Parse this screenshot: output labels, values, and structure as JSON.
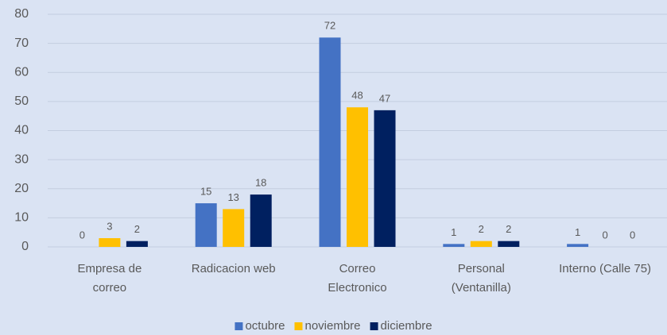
{
  "chart_data": {
    "type": "bar",
    "categories": [
      [
        "Empresa de",
        "correo"
      ],
      [
        "Radicacion web"
      ],
      [
        "Correo",
        "Electronico"
      ],
      [
        "Personal",
        "(Ventanilla)"
      ],
      [
        "Interno (Calle 75)"
      ]
    ],
    "series": [
      {
        "name": "octubre",
        "color": "#4472c4",
        "values": [
          0,
          15,
          72,
          1,
          1
        ]
      },
      {
        "name": "noviembre",
        "color": "#ffc000",
        "values": [
          3,
          13,
          48,
          2,
          0
        ]
      },
      {
        "name": "diciembre",
        "color": "#002060",
        "values": [
          2,
          18,
          47,
          2,
          0
        ]
      }
    ],
    "ylim": [
      0,
      80
    ],
    "yticks": [
      0,
      10,
      20,
      30,
      40,
      50,
      60,
      70,
      80
    ],
    "grid": true,
    "legend": "bottom"
  }
}
